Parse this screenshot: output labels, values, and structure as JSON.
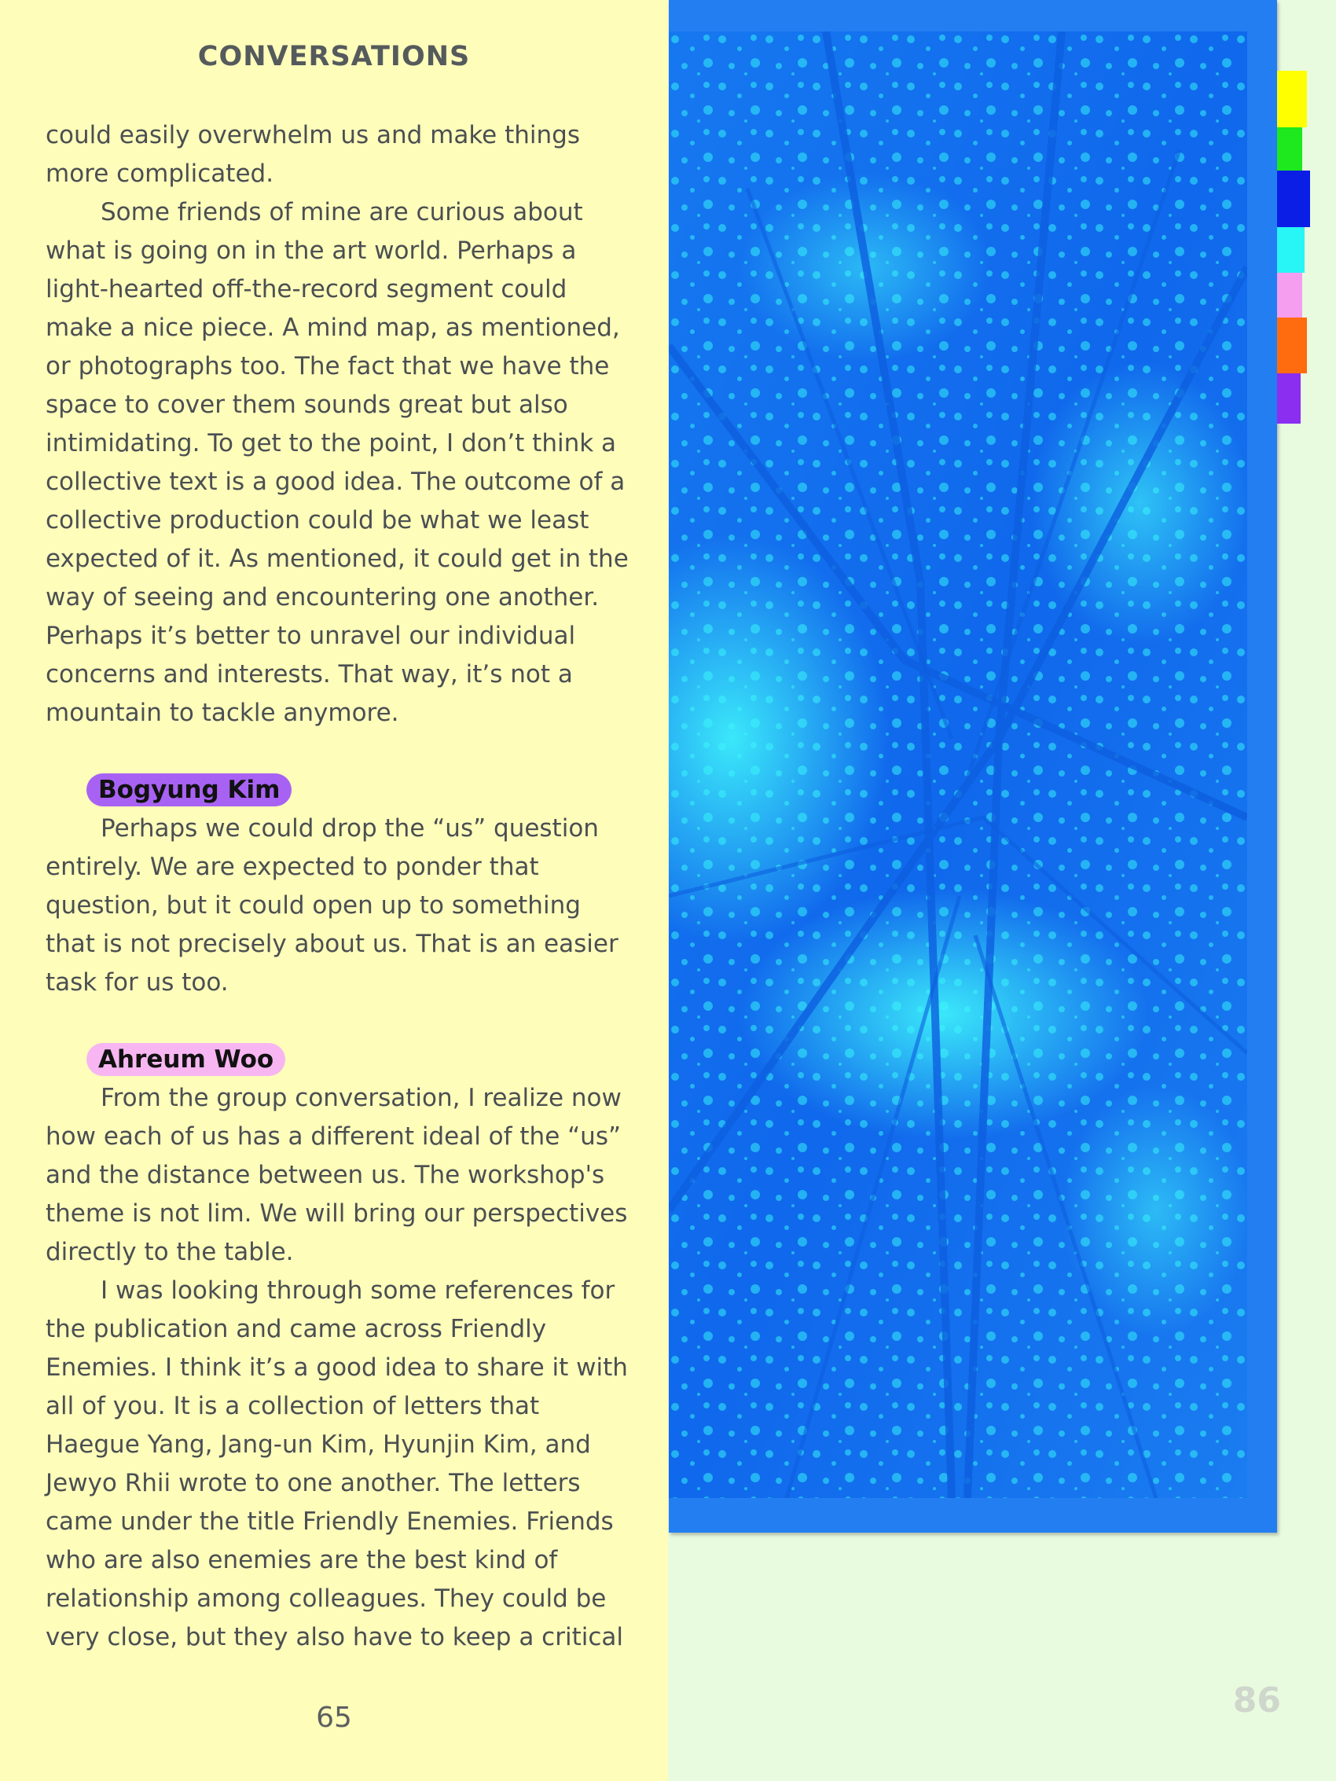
{
  "left_page": {
    "running_head": "CONVERSATIONS",
    "paragraphs_top": [
      "could easily overwhelm us and make things more complicated.",
      "Some friends of mine are curious about what is going on in the art world. Perhaps a light-hearted off-the-record segment could make a nice piece. A mind map, as mentioned, or photographs too. The fact that we have the space to cover them sounds great but also intimidating. To get to the point, I don’t think a collective text is a good idea. The outcome of a collective production could be what we least expected of it. As mentioned, it could get in the way of seeing and encountering one another. Perhaps it’s better to unravel our individual concerns and interests. That way, it’s not a mountain to tackle anymore."
    ],
    "speaker_1": "Bogyung Kim",
    "speaker_1_text": "Perhaps we could drop the “us” question entirely. We are expected to ponder that question, but it could open up to something that is not precisely about us. That is an easier task for us too.",
    "speaker_2": "Ahreum Woo",
    "speaker_2_texts": [
      "From the group conversation, I realize now how each of us has a different ideal of the “us” and the distance between us. The workshop's theme is not lim. We will bring our perspectives directly to the table.",
      "I was looking through some references for the publication and came across Friendly Enemies. I think it’s a good idea to share it with all of you. It is a collection of letters that Haegue Yang, Jang-un Kim, Hyunjin Kim, and Jewyo Rhii wrote to one another. The letters came under the title Friendly Enemies. Friends who are also enemies are the best kind of relationship among colleagues. They could be very close, but they also have to keep a critical"
    ],
    "page_number": "65"
  },
  "right_page": {
    "page_number": "86",
    "photo": {
      "description_icon": "tree-canopy-photo-icon",
      "tint_dark": "#1470ee",
      "tint_light": "#2ff0fb"
    },
    "tab_colors": [
      "#ffff00",
      "#1ee81e",
      "#0a1ee6",
      "#28f5f5",
      "#f59ef0",
      "#ff6b0f",
      "#8b2ef0"
    ]
  },
  "colors": {
    "left_background": "#fefdba",
    "right_background": "#e9fbdf",
    "frame_blue": "#237ff1",
    "speaker_1_badge": "#a862f3",
    "speaker_2_badge": "#f7b6f1"
  }
}
